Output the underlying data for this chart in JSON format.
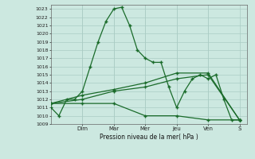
{
  "title": "Pression niveau de la mer( hPa )",
  "bg_color": "#cce8e0",
  "grid_color": "#aaccc4",
  "line_color": "#1a6b2a",
  "ylim": [
    1009,
    1023.5
  ],
  "yticks": [
    1009,
    1010,
    1011,
    1012,
    1013,
    1014,
    1015,
    1016,
    1017,
    1018,
    1019,
    1020,
    1021,
    1022,
    1023
  ],
  "day_labels": [
    "Dim",
    "Mar",
    "Mer",
    "Jeu",
    "Ven",
    "S"
  ],
  "day_positions": [
    2,
    4,
    6,
    8,
    10,
    12
  ],
  "series1_x": [
    0,
    0.5,
    1.0,
    1.5,
    2.0,
    2.5,
    3.0,
    3.5,
    4.0,
    4.5,
    5.0,
    5.5,
    6.0,
    6.5,
    7.0,
    7.5,
    8.0,
    8.5,
    9.0,
    9.5,
    10.0,
    10.5,
    11.0,
    11.5,
    12.0
  ],
  "series1_y": [
    1011,
    1010,
    1012,
    1012,
    1013,
    1016,
    1019,
    1021.5,
    1023,
    1023.2,
    1021,
    1018,
    1017,
    1016.5,
    1016.5,
    1013.5,
    1011,
    1013,
    1014.5,
    1015,
    1014.5,
    1015,
    1012,
    1009.5,
    1009.5
  ],
  "series2_x": [
    0,
    2,
    4,
    6,
    8,
    10,
    12
  ],
  "series2_y": [
    1011.5,
    1012,
    1013,
    1013.5,
    1014.5,
    1015,
    1009.5
  ],
  "series3_x": [
    0,
    2,
    4,
    6,
    8,
    10,
    12
  ],
  "series3_y": [
    1011.5,
    1012.5,
    1013.2,
    1014,
    1015.2,
    1015.2,
    1009.5
  ],
  "series4_x": [
    0,
    2,
    4,
    6,
    8,
    10,
    12
  ],
  "series4_y": [
    1011.5,
    1011.5,
    1011.5,
    1010,
    1010,
    1009.5,
    1009.5
  ]
}
